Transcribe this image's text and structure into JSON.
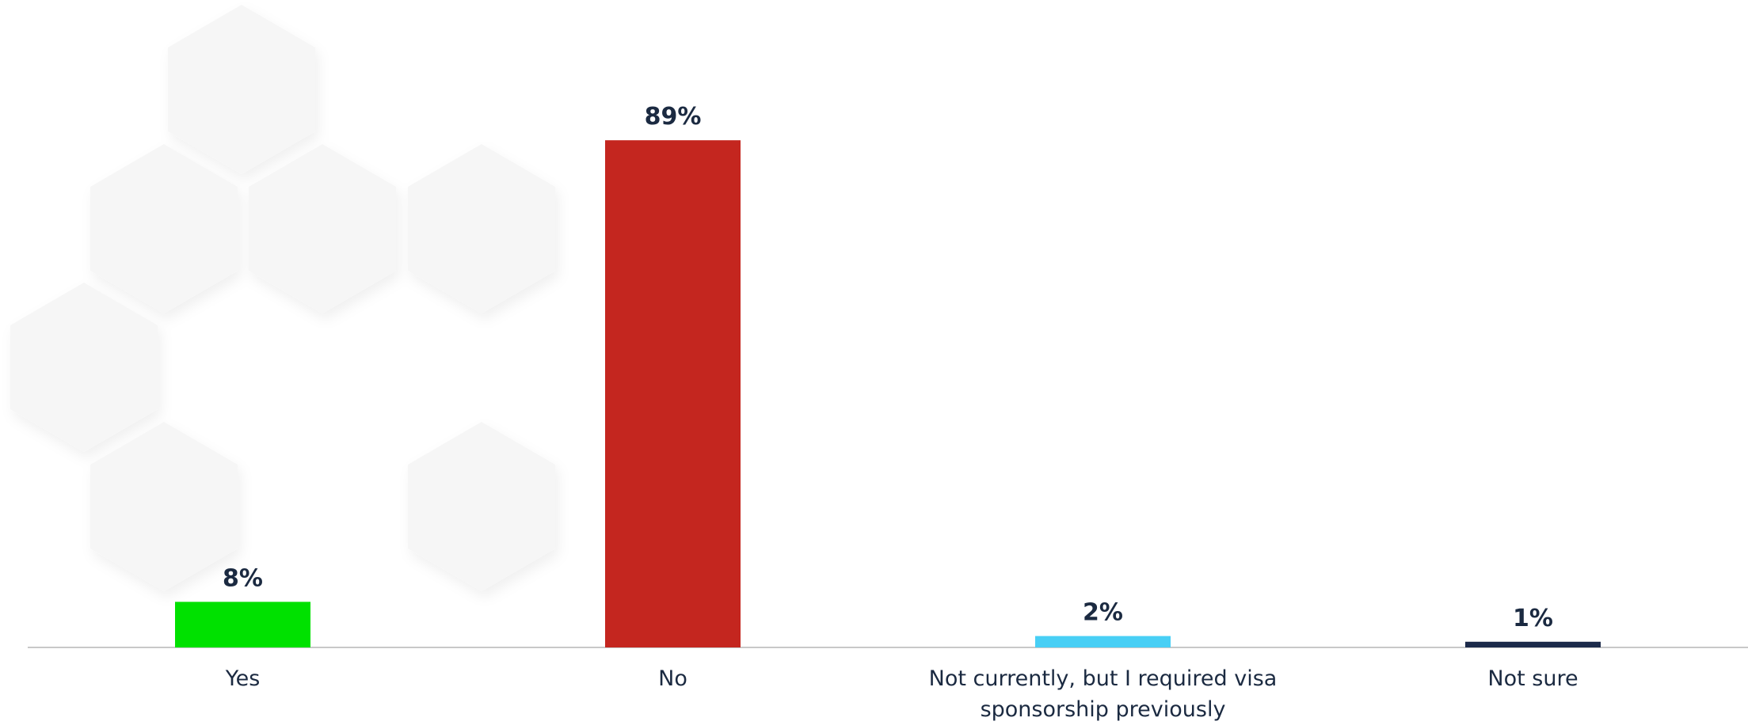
{
  "chart_data": {
    "type": "bar",
    "categories": [
      "Yes",
      "No",
      "Not currently, but I required visa sponsorship previously",
      "Not sure"
    ],
    "values": [
      8,
      89,
      2,
      1
    ],
    "value_labels": [
      "8%",
      "89%",
      "2%",
      "1%"
    ],
    "colors": [
      "#00e100",
      "#c4261f",
      "#48cff5",
      "#1c2a4a"
    ]
  }
}
